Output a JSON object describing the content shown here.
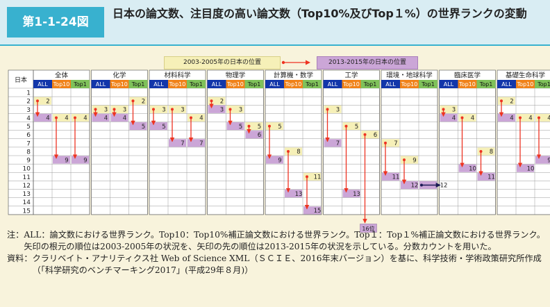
{
  "header": {
    "figure_number": "第1-1-24図",
    "title": "日本の論文数、注目度の高い論文数（Top10%及びTop１%）の世界ランクの変動"
  },
  "legend": {
    "old_label": "2003-2005年の日本の位置",
    "new_label": "2013-2015年の日本の位置"
  },
  "colors": {
    "old_position": "#f6f0b8",
    "new_position": "#cba6d7",
    "arrow": "#ee3322",
    "arrow_up": "#1a1a55",
    "all_header": "#1236aa",
    "top10_header": "#f08219",
    "top1_header": "#7fc15a"
  },
  "chart_data": {
    "type": "table",
    "row_header": "日本",
    "ranks": [
      1,
      2,
      3,
      4,
      5,
      6,
      7,
      8,
      9,
      10,
      11,
      12,
      13,
      14,
      15
    ],
    "metrics": [
      "ALL",
      "Top10",
      "Top1"
    ],
    "fields": [
      {
        "name": "全体",
        "values": [
          {
            "from": 2,
            "to": 4
          },
          {
            "from": 4,
            "to": 9
          },
          {
            "from": 4,
            "to": 9
          }
        ]
      },
      {
        "name": "化学",
        "values": [
          {
            "from": 3,
            "to": 4
          },
          {
            "from": 3,
            "to": 4
          },
          {
            "from": 2,
            "to": 5
          }
        ]
      },
      {
        "name": "材料科学",
        "values": [
          {
            "from": 3,
            "to": 5
          },
          {
            "from": 3,
            "to": 7
          },
          {
            "from": 4,
            "to": 7
          }
        ]
      },
      {
        "name": "物理学",
        "values": [
          {
            "from": 2,
            "to": 3
          },
          {
            "from": 3,
            "to": 5
          },
          {
            "from": 5,
            "to": 6
          }
        ]
      },
      {
        "name": "計算機・数学",
        "values": [
          {
            "from": 5,
            "to": 9
          },
          {
            "from": 8,
            "to": 13
          },
          {
            "from": 11,
            "to": 15
          }
        ]
      },
      {
        "name": "工学",
        "values": [
          {
            "from": 3,
            "to": 7
          },
          {
            "from": 5,
            "to": 13
          },
          {
            "from": 6,
            "to": 16
          }
        ]
      },
      {
        "name": "環境・地球科学",
        "values": [
          {
            "from": 7,
            "to": 11
          },
          {
            "from": 9,
            "to": 12
          },
          {
            "from": 12,
            "to": 12
          }
        ]
      },
      {
        "name": "臨床医学",
        "values": [
          {
            "from": 3,
            "to": 4
          },
          {
            "from": 4,
            "to": 10
          },
          {
            "from": 8,
            "to": 11
          }
        ]
      },
      {
        "name": "基礎生命科学",
        "values": [
          {
            "from": 2,
            "to": 4
          },
          {
            "from": 4,
            "to": 10
          },
          {
            "from": 4,
            "to": 9
          }
        ]
      }
    ],
    "overflow_label": "16位"
  },
  "notes": [
    {
      "label": "注：",
      "text": "ALL：論文数における世界ランク。Top10：Top10%補正論文数における世界ランク。Top１：Top１%補正論文数における世界ランク。矢印の根元の順位は2003-2005年の状況を、矢印の先の順位は2013-2015年の状況を示している。分数カウントを用いた。"
    },
    {
      "label": "資料：",
      "text": "クラリベイト・アナリティクス社 Web of Science XML（ＳＣＩＥ、2016年末バージョン）を基に、科学技術・学術政策研究所作成（「科学研究のベンチマーキング2017」(平成29年８月)）"
    }
  ]
}
